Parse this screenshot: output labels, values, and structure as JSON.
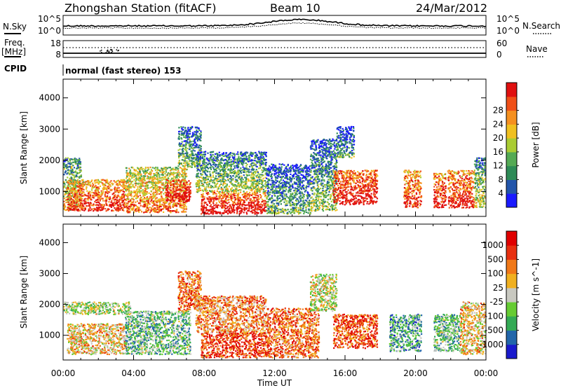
{
  "header": {
    "station": "Zhongshan Station (fitACF)",
    "beam": "Beam 10",
    "date": "24/Mar/2012"
  },
  "noise_panel": {
    "left_label": "N.Sky",
    "right_label": "N.Search",
    "left_ticks": [
      "10^5",
      "10^0"
    ],
    "right_ticks": [
      "10^5",
      "10^0"
    ]
  },
  "freq_panel": {
    "left_label_1": "Freq.",
    "left_label_2": "[MHz]",
    "right_label": "Nave",
    "left_ticks": [
      "18",
      "8"
    ],
    "right_ticks": [
      "60",
      "0"
    ]
  },
  "cpid": {
    "label": "CPID",
    "value": "normal (fast stereo) 153"
  },
  "chart_data": [
    {
      "type": "heatmap",
      "panel": "power",
      "ylabel": "Slant Range [km]",
      "xlabel": "Time UT",
      "x_ticks": [
        "00:00",
        "04:00",
        "08:00",
        "12:00",
        "16:00",
        "20:00",
        "00:00"
      ],
      "x_range_hours": [
        0,
        24
      ],
      "y_ticks": [
        1000,
        2000,
        3000,
        4000
      ],
      "ylim": [
        200,
        4600
      ],
      "colorbar_label": "Power [dB]",
      "colorbar_ticks": [
        "4",
        "8",
        "12",
        "16",
        "20",
        "24",
        "28"
      ],
      "colorbar_colors": [
        "#1a1aff",
        "#2255aa",
        "#2e8b57",
        "#55aa55",
        "#aacc33",
        "#f0c020",
        "#f59020",
        "#f05018",
        "#e01010"
      ],
      "echo_regions": [
        {
          "t": [
            0.0,
            1.0
          ],
          "r": [
            400,
            2100
          ],
          "level": 0.45
        },
        {
          "t": [
            0.2,
            3.5
          ],
          "r": [
            400,
            1400
          ],
          "level": 0.8
        },
        {
          "t": [
            3.5,
            7.0
          ],
          "r": [
            350,
            1800
          ],
          "level": 0.65
        },
        {
          "t": [
            5.8,
            7.2
          ],
          "r": [
            700,
            1400
          ],
          "level": 0.95
        },
        {
          "t": [
            6.5,
            7.8
          ],
          "r": [
            1800,
            3100
          ],
          "level": 0.3
        },
        {
          "t": [
            7.8,
            11.5
          ],
          "r": [
            300,
            1000
          ],
          "level": 0.92
        },
        {
          "t": [
            7.5,
            11.5
          ],
          "r": [
            1000,
            2300
          ],
          "level": 0.35
        },
        {
          "t": [
            11.5,
            14.0
          ],
          "r": [
            300,
            1900
          ],
          "level": 0.25
        },
        {
          "t": [
            14.0,
            15.5
          ],
          "r": [
            400,
            2700
          ],
          "level": 0.3
        },
        {
          "t": [
            15.3,
            17.8
          ],
          "r": [
            600,
            1700
          ],
          "level": 0.9
        },
        {
          "t": [
            15.5,
            16.5
          ],
          "r": [
            2100,
            3100
          ],
          "level": 0.2
        },
        {
          "t": [
            19.3,
            20.3
          ],
          "r": [
            500,
            1700
          ],
          "level": 0.8
        },
        {
          "t": [
            21.0,
            21.7
          ],
          "r": [
            500,
            1600
          ],
          "level": 0.85
        },
        {
          "t": [
            21.8,
            23.3
          ],
          "r": [
            500,
            1700
          ],
          "level": 0.85
        },
        {
          "t": [
            23.3,
            24.0
          ],
          "r": [
            500,
            2100
          ],
          "level": 0.4
        }
      ]
    },
    {
      "type": "heatmap",
      "panel": "velocity",
      "ylabel": "Slant Range [km]",
      "xlabel": "Time UT",
      "x_ticks": [
        "00:00",
        "04:00",
        "08:00",
        "12:00",
        "16:00",
        "20:00",
        "00:00"
      ],
      "x_range_hours": [
        0,
        24
      ],
      "y_ticks": [
        1000,
        2000,
        3000,
        4000
      ],
      "ylim": [
        200,
        4600
      ],
      "colorbar_label": "Velocity [m s^-1]",
      "colorbar_ticks": [
        "1000",
        "500",
        "100",
        "25",
        "-25",
        "-100",
        "-500",
        "-1000"
      ],
      "colorbar_colors": [
        "#1a1acc",
        "#2266aa",
        "#33aa55",
        "#66cc33",
        "#c8c8c0",
        "#f0b020",
        "#f07818",
        "#e83010",
        "#e00000"
      ],
      "echo_regions": [
        {
          "t": [
            0.0,
            3.8
          ],
          "r": [
            1700,
            2100
          ],
          "level": 0.45
        },
        {
          "t": [
            0.2,
            3.5
          ],
          "r": [
            400,
            1400
          ],
          "level": 0.6
        },
        {
          "t": [
            3.5,
            7.2
          ],
          "r": [
            400,
            1800
          ],
          "level": 0.35
        },
        {
          "t": [
            6.5,
            7.8
          ],
          "r": [
            1800,
            3100
          ],
          "level": 0.75
        },
        {
          "t": [
            7.8,
            11.5
          ],
          "r": [
            300,
            1100
          ],
          "level": 0.85
        },
        {
          "t": [
            7.5,
            11.5
          ],
          "r": [
            1100,
            2300
          ],
          "level": 0.7
        },
        {
          "t": [
            11.5,
            14.5
          ],
          "r": [
            300,
            1900
          ],
          "level": 0.75
        },
        {
          "t": [
            14.0,
            15.5
          ],
          "r": [
            1800,
            3000
          ],
          "level": 0.5
        },
        {
          "t": [
            15.3,
            17.8
          ],
          "r": [
            600,
            1700
          ],
          "level": 0.8
        },
        {
          "t": [
            18.5,
            20.3
          ],
          "r": [
            500,
            1700
          ],
          "level": 0.3
        },
        {
          "t": [
            21.0,
            22.5
          ],
          "r": [
            500,
            1700
          ],
          "level": 0.35
        },
        {
          "t": [
            22.5,
            24.0
          ],
          "r": [
            400,
            2100
          ],
          "level": 0.6
        }
      ]
    }
  ]
}
